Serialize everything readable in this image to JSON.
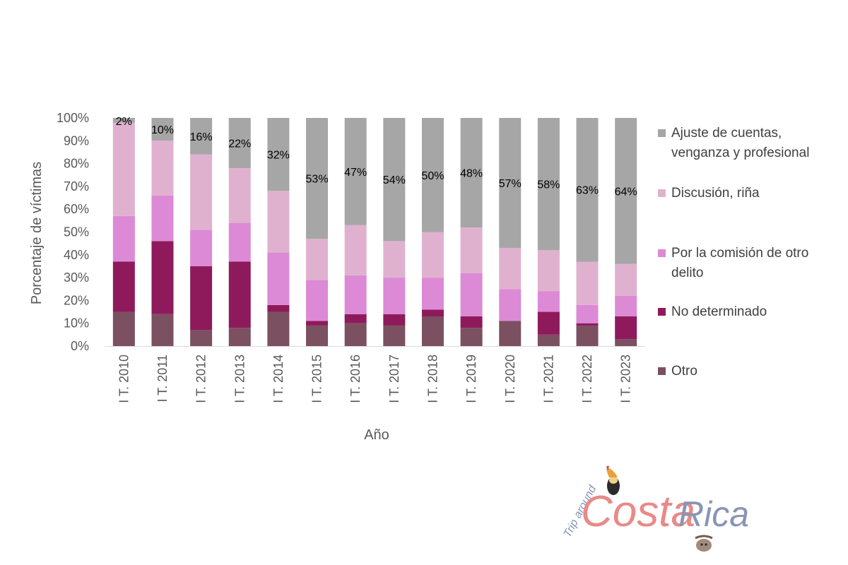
{
  "chart_data": {
    "type": "bar",
    "stacked": true,
    "xlabel": "Año",
    "ylabel": "Porcentaje de víctimas",
    "ylim": [
      0,
      100
    ],
    "y_ticks": [
      "0%",
      "10%",
      "20%",
      "30%",
      "40%",
      "50%",
      "60%",
      "70%",
      "80%",
      "90%",
      "100%"
    ],
    "categories": [
      "I T. 2010",
      "I T. 2011",
      "I T. 2012",
      "I T. 2013",
      "I T. 2014",
      "I T. 2015",
      "I T. 2016",
      "I T. 2017",
      "I T. 2018",
      "I T. 2019",
      "I T. 2020",
      "I T. 2021",
      "I T. 2022",
      "I T. 2023"
    ],
    "series": [
      {
        "name": "Otro",
        "color": "#7b5060",
        "values": [
          15,
          14,
          7,
          8,
          15,
          9,
          10,
          9,
          13,
          8,
          11,
          5,
          9,
          3
        ]
      },
      {
        "name": "No determinado",
        "color": "#8e1a5c",
        "values": [
          22,
          32,
          28,
          29,
          3,
          2,
          4,
          5,
          3,
          5,
          0,
          10,
          1,
          10
        ]
      },
      {
        "name": "Por la comisión de otro delito",
        "color": "#dc8ad5",
        "values": [
          20,
          20,
          16,
          17,
          23,
          18,
          17,
          16,
          14,
          19,
          14,
          9,
          8,
          9
        ]
      },
      {
        "name": "Discusión, riña",
        "color": "#dfb1cf",
        "values": [
          41,
          24,
          33,
          24,
          27,
          18,
          22,
          16,
          20,
          20,
          18,
          18,
          19,
          14
        ]
      },
      {
        "name": "Ajuste de cuentas, venganza y profesional",
        "color": "#a6a6a6",
        "values": [
          2,
          10,
          16,
          22,
          32,
          53,
          47,
          54,
          50,
          48,
          57,
          58,
          63,
          64
        ]
      }
    ],
    "data_labels": [
      "2%",
      "10%",
      "16%",
      "22%",
      "32%",
      "53%",
      "47%",
      "54%",
      "50%",
      "48%",
      "57%",
      "58%",
      "63%",
      "64%"
    ],
    "legend_position": "right",
    "grid": false
  },
  "watermark": {
    "line1": "Trip around",
    "word1": "Costa",
    "word2": "Rica",
    "color1": "#e88a88",
    "color2": "#8a95b5"
  }
}
